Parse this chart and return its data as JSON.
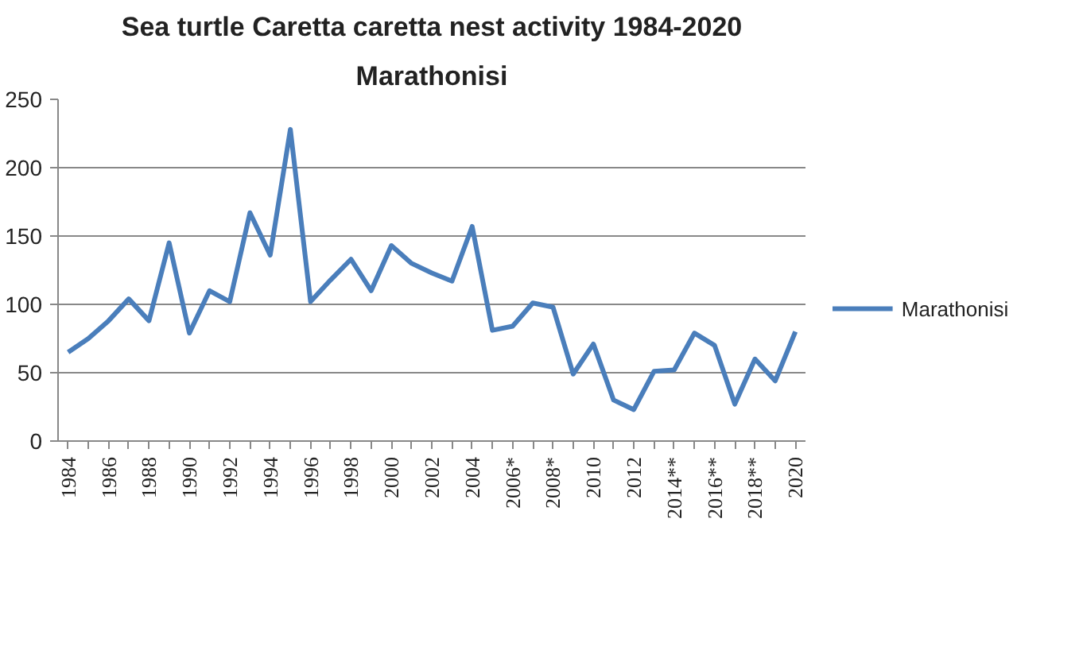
{
  "chart_data": {
    "type": "line",
    "title": "Sea turtle Caretta caretta nest activity 1984-2020",
    "subtitle": "Marathonisi",
    "categories": [
      "1984",
      null,
      "1986",
      null,
      "1988",
      null,
      "1990",
      null,
      "1992",
      null,
      "1994",
      null,
      "1996",
      null,
      "1998",
      null,
      "2000",
      null,
      "2002",
      null,
      "2004",
      null,
      "2006*",
      null,
      "2008*",
      null,
      "2010",
      null,
      "2012",
      null,
      "2014**",
      null,
      "2016**",
      null,
      "2018**",
      null,
      "2020"
    ],
    "series": [
      {
        "name": "Marathonisi",
        "color": "#4a7ebb",
        "values": [
          65,
          75,
          88,
          104,
          88,
          145,
          79,
          110,
          102,
          167,
          136,
          228,
          102,
          118,
          133,
          110,
          143,
          130,
          123,
          117,
          157,
          81,
          84,
          101,
          98,
          49,
          71,
          30,
          23,
          51,
          52,
          79,
          70,
          27,
          60,
          44,
          80
        ]
      }
    ],
    "ylim": [
      0,
      250
    ],
    "yticks": [
      0,
      50,
      100,
      150,
      200,
      250
    ],
    "grid": "y",
    "legend": "right",
    "marker": "none",
    "line_style": "solid"
  }
}
